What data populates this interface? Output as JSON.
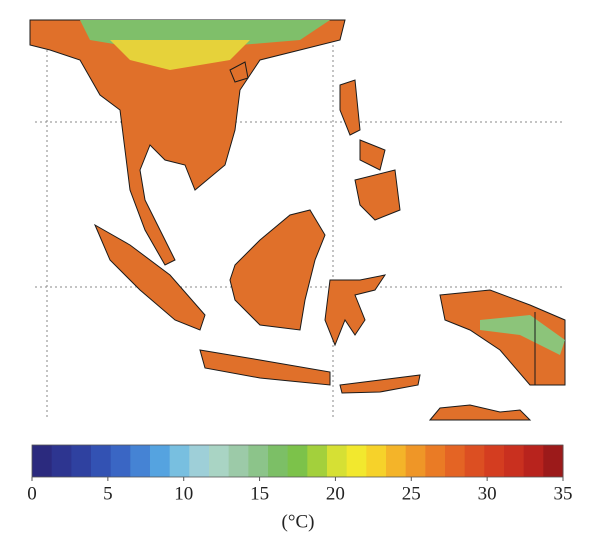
{
  "colorbar": {
    "lim": [
      0,
      35
    ],
    "ticks": [
      0,
      5,
      10,
      15,
      20,
      25,
      30,
      35
    ],
    "label": "(°C)",
    "colors": [
      "#2b2a7e",
      "#2d3590",
      "#2f41a0",
      "#3352b3",
      "#3a66c4",
      "#4583d4",
      "#55a3e0",
      "#78bfe0",
      "#9ecfd8",
      "#a9d4c4",
      "#9ccaa8",
      "#8cc48a",
      "#7cbf66",
      "#7cc24a",
      "#a3d03c",
      "#d6e034",
      "#f2e82e",
      "#f6d22a",
      "#f4b429",
      "#ef9627",
      "#ea7b25",
      "#e46424",
      "#dc4f22",
      "#d43d20",
      "#c9301f",
      "#b8231d",
      "#9c1a1a"
    ]
  }
}
